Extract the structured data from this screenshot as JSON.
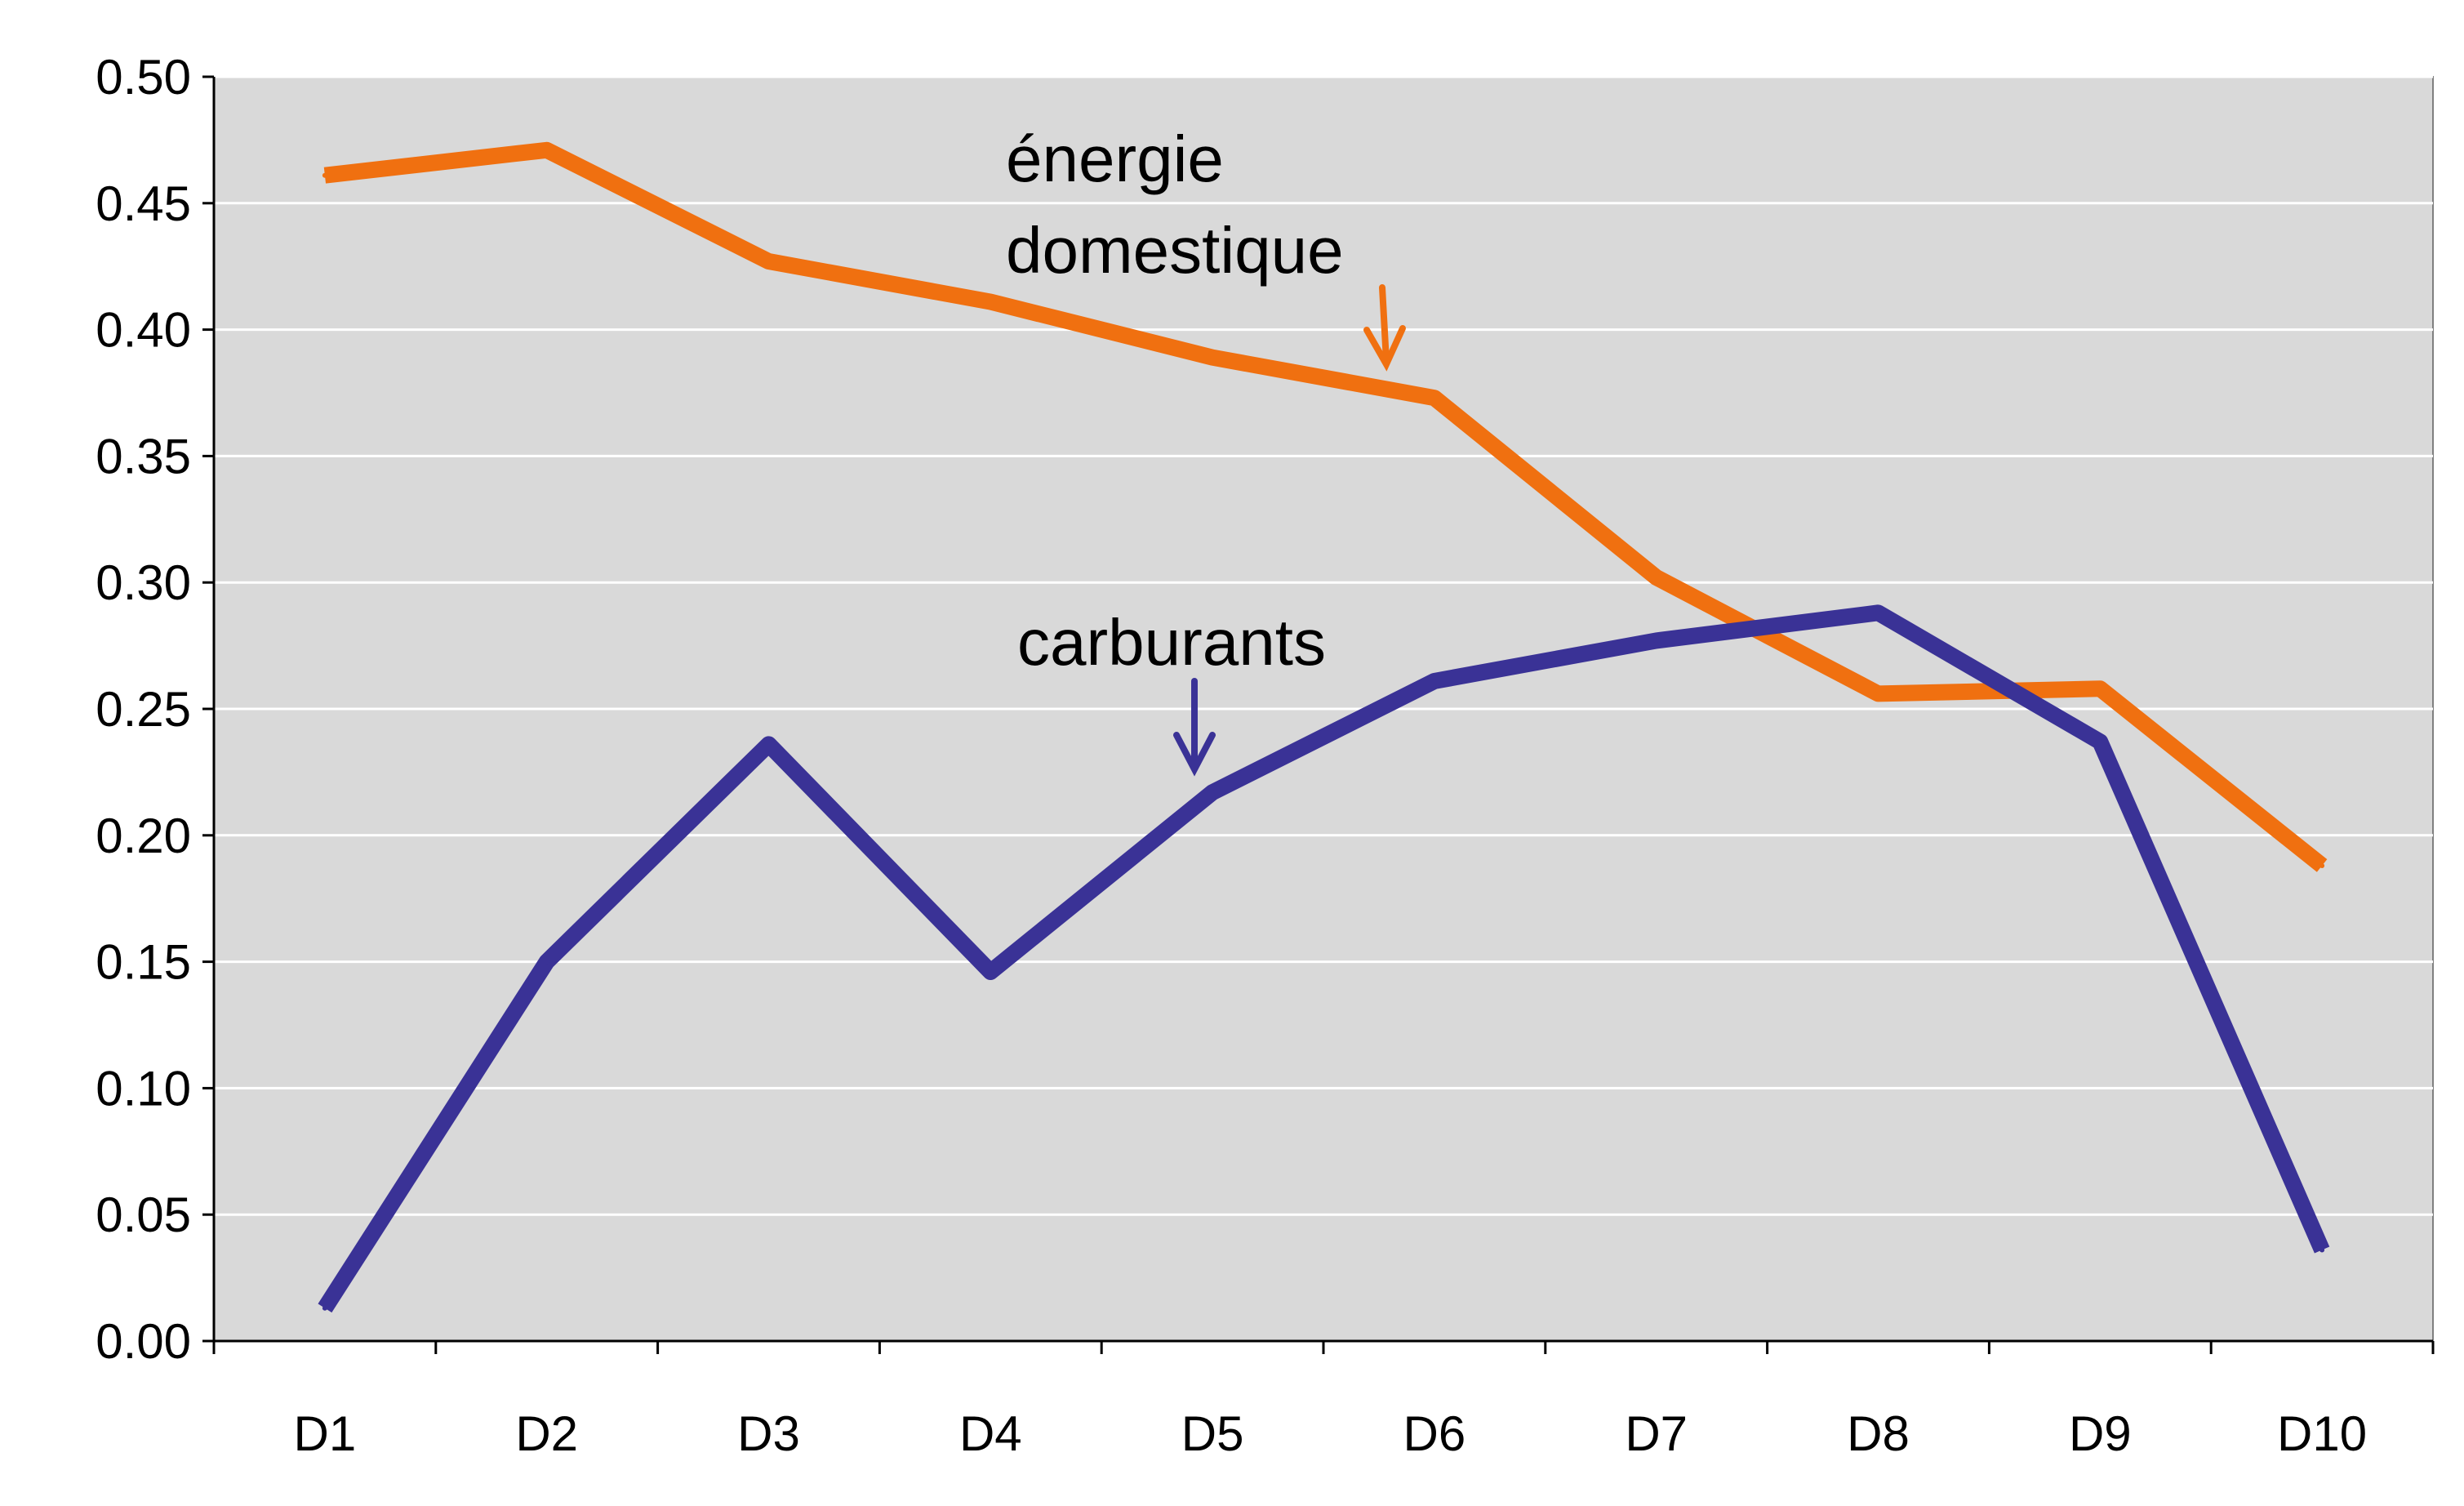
{
  "chart_data": {
    "type": "line",
    "title": "",
    "xlabel": "",
    "ylabel": "",
    "categories": [
      "D1",
      "D2",
      "D3",
      "D4",
      "D5",
      "D6",
      "D7",
      "D8",
      "D9",
      "D10"
    ],
    "ylim": [
      0,
      0.5
    ],
    "y_ticks": [
      "0.00",
      "0.05",
      "0.10",
      "0.15",
      "0.20",
      "0.25",
      "0.30",
      "0.35",
      "0.40",
      "0.45",
      "0.50"
    ],
    "grid": true,
    "plot_background": "#d9d9d9",
    "series": [
      {
        "name": "énergie domestique",
        "color": "#f07010",
        "values": [
          0.461,
          0.471,
          0.427,
          0.411,
          0.389,
          0.373,
          0.302,
          0.256,
          0.258,
          0.188
        ]
      },
      {
        "name": "carburants",
        "color": "#3a3296",
        "values": [
          0.013,
          0.15,
          0.236,
          0.146,
          0.217,
          0.261,
          0.277,
          0.288,
          0.237,
          0.036
        ]
      }
    ],
    "annotations": [
      {
        "lines": [
          "énergie",
          "domestique"
        ],
        "series": 0,
        "arrow": "down"
      },
      {
        "lines": [
          "carburants"
        ],
        "series": 1,
        "arrow": "down"
      }
    ]
  }
}
